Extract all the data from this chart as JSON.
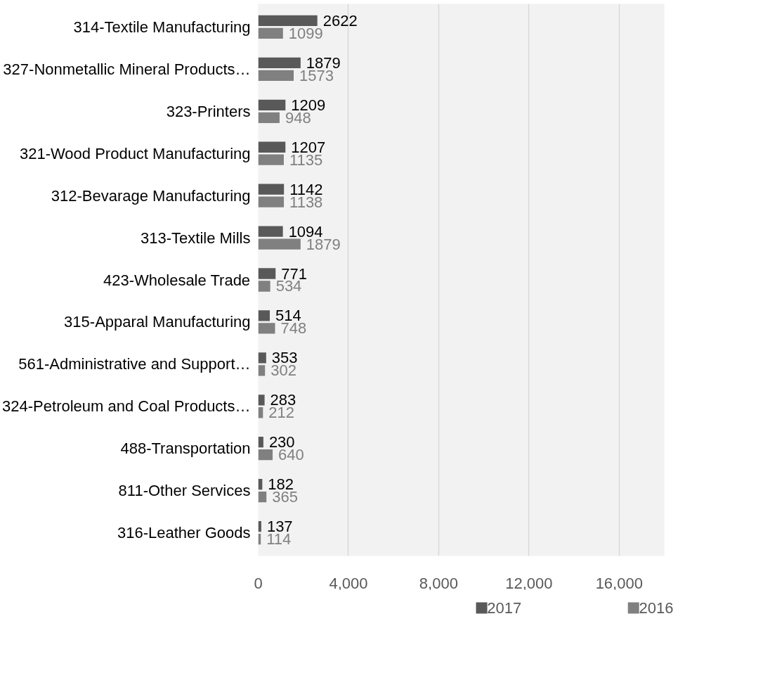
{
  "chart_data": {
    "type": "bar",
    "orientation": "horizontal",
    "categories": [
      "314-Textile Manufacturing",
      "327-Nonmetallic Mineral Products…",
      "323-Printers",
      "321-Wood Product Manufacturing",
      "312-Bevarage Manufacturing",
      "313-Textile Mills",
      "423-Wholesale Trade",
      "315-Apparal Manufacturing",
      "561-Administrative and Support…",
      "324-Petroleum and Coal Products…",
      "488-Transportation",
      "811-Other Services",
      "316-Leather Goods"
    ],
    "series": [
      {
        "name": "2017",
        "color": "#595959",
        "values": [
          2622,
          1879,
          1209,
          1207,
          1142,
          1094,
          771,
          514,
          353,
          283,
          230,
          182,
          137
        ]
      },
      {
        "name": "2016",
        "color": "#808080",
        "values": [
          1099,
          1573,
          948,
          1135,
          1138,
          1879,
          534,
          748,
          302,
          212,
          640,
          365,
          114
        ]
      }
    ],
    "xlim": [
      0,
      18000
    ],
    "xticks": [
      0,
      {
        "value": 4000,
        "label": "4,000"
      },
      {
        "value": 8000,
        "label": "8,000"
      },
      {
        "value": 12000,
        "label": "12,000"
      },
      {
        "value": 16000,
        "label": "16,000"
      }
    ],
    "grid": "x",
    "legend": "bottom",
    "data_labels": true
  }
}
